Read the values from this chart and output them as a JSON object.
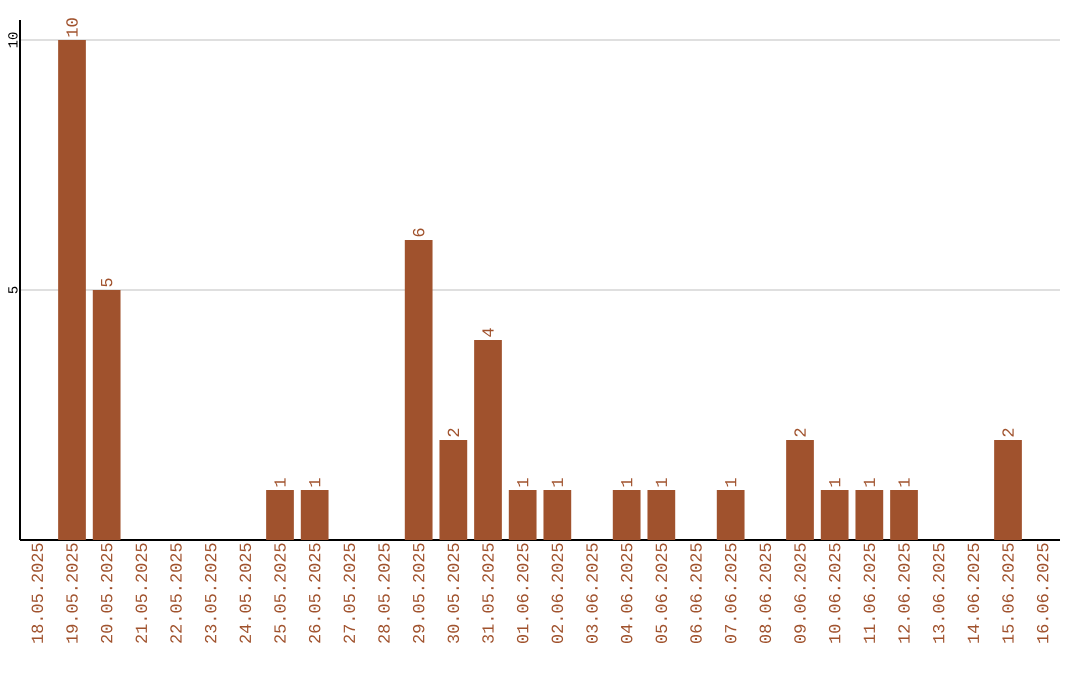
{
  "chart_data": {
    "type": "bar",
    "categories": [
      "18.05.2025",
      "19.05.2025",
      "20.05.2025",
      "21.05.2025",
      "22.05.2025",
      "23.05.2025",
      "24.05.2025",
      "25.05.2025",
      "26.05.2025",
      "27.05.2025",
      "28.05.2025",
      "29.05.2025",
      "30.05.2025",
      "31.05.2025",
      "01.06.2025",
      "02.06.2025",
      "03.06.2025",
      "04.06.2025",
      "05.06.2025",
      "06.06.2025",
      "07.06.2025",
      "08.06.2025",
      "09.06.2025",
      "10.06.2025",
      "11.06.2025",
      "12.06.2025",
      "13.06.2025",
      "14.06.2025",
      "15.06.2025",
      "16.06.2025"
    ],
    "values": [
      0,
      10,
      5,
      0,
      0,
      0,
      0,
      1,
      1,
      0,
      0,
      6,
      2,
      4,
      1,
      1,
      0,
      1,
      1,
      0,
      1,
      0,
      2,
      1,
      1,
      1,
      0,
      0,
      2,
      0
    ],
    "value_labels": [
      null,
      "10",
      "5",
      null,
      null,
      null,
      null,
      "1",
      "1",
      null,
      null,
      "6",
      "2",
      "4",
      "1",
      "1",
      null,
      "1",
      "1",
      null,
      "1",
      null,
      "2",
      "1",
      "1",
      "1",
      null,
      null,
      "2",
      null
    ],
    "color": "#a0522d",
    "ylim": [
      0,
      10.4
    ],
    "yticks": [
      5,
      10
    ],
    "grid": "y"
  }
}
